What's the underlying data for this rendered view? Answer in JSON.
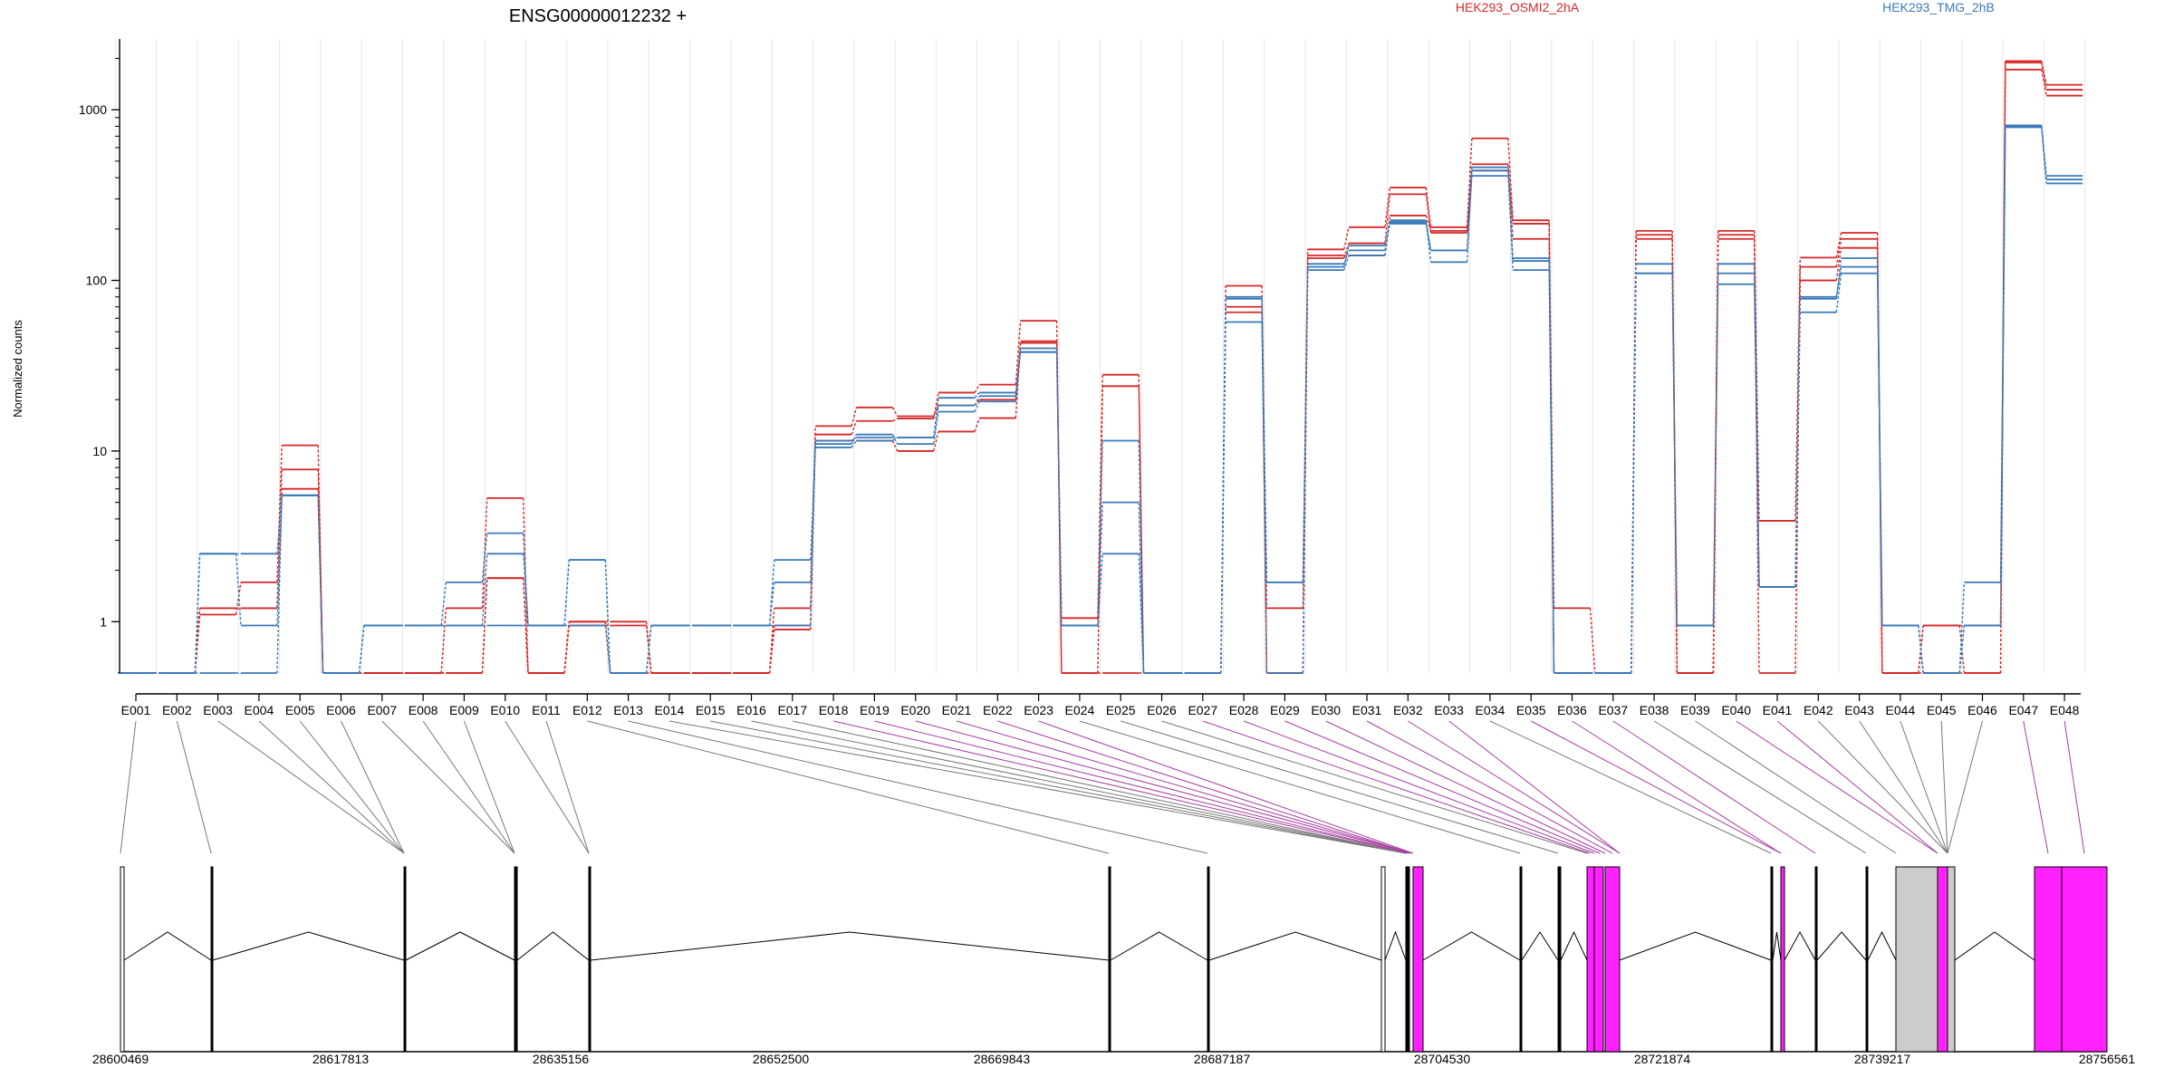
{
  "chart_data": {
    "type": "line",
    "title": "ENSG00000012232 +",
    "ylabel": "Normalized counts",
    "yscale": "log",
    "ylim": [
      0.5,
      2600
    ],
    "yticks": [
      1,
      10,
      100,
      1000
    ],
    "ytick_labels": [
      "1",
      "10",
      "100",
      "1000"
    ],
    "categories": [
      "E001",
      "E002",
      "E003",
      "E004",
      "E005",
      "E006",
      "E007",
      "E008",
      "E009",
      "E010",
      "E011",
      "E012",
      "E013",
      "E014",
      "E015",
      "E016",
      "E017",
      "E018",
      "E019",
      "E020",
      "E021",
      "E022",
      "E023",
      "E024",
      "E025",
      "E026",
      "E027",
      "E028",
      "E029",
      "E030",
      "E031",
      "E032",
      "E033",
      "E034",
      "E035",
      "E036",
      "E037",
      "E038",
      "E039",
      "E040",
      "E041",
      "E042",
      "E043",
      "E044",
      "E045",
      "E046",
      "E047",
      "E048"
    ],
    "legend": [
      {
        "label": "HEK293_OSMI2_2hA",
        "color": "#d62728"
      },
      {
        "label": "HEK293_TMG_2hB",
        "color": "#3a7ab8"
      }
    ],
    "series": [
      {
        "group": "HEK293_OSMI2_2hA",
        "color": "#d62728",
        "values": [
          0.5,
          0.5,
          1.1,
          1.7,
          10.8,
          0.5,
          0.5,
          0.5,
          1.2,
          5.3,
          0.5,
          1.0,
          1.0,
          0.5,
          0.5,
          0.5,
          0.9,
          11.5,
          11.5,
          10.0,
          13.0,
          15.6,
          43,
          1.05,
          28,
          0.5,
          0.5,
          93,
          1.2,
          152,
          205,
          350,
          205,
          680,
          225,
          1.2,
          0.5,
          195,
          0.5,
          195,
          3.9,
          136,
          190,
          0.5,
          0.95,
          0.95,
          1930,
          1400
        ]
      },
      {
        "group": "HEK293_OSMI2_2hA",
        "color": "#d62728",
        "values": [
          0.5,
          0.5,
          1.2,
          1.2,
          7.8,
          0.5,
          0.5,
          0.5,
          0.5,
          1.8,
          0.5,
          1.0,
          0.5,
          0.5,
          0.5,
          0.5,
          1.2,
          12.5,
          15.0,
          15.5,
          22.0,
          24.5,
          58,
          0.5,
          24,
          0.5,
          0.5,
          70,
          0.5,
          135,
          165,
          320,
          190,
          480,
          215,
          0.5,
          0.5,
          175,
          0.5,
          175,
          1.6,
          120,
          175,
          0.5,
          0.95,
          0.5,
          1720,
          1210
        ]
      },
      {
        "group": "HEK293_OSMI2_2hA",
        "color": "#d62728",
        "values": [
          0.5,
          0.5,
          1.2,
          1.2,
          6.0,
          0.5,
          0.5,
          0.5,
          0.5,
          1.8,
          0.5,
          0.95,
          0.95,
          0.5,
          0.5,
          0.5,
          0.95,
          14.0,
          18.0,
          16.0,
          18.5,
          20.0,
          44,
          0.5,
          0.5,
          0.5,
          0.5,
          65,
          0.5,
          140,
          140,
          240,
          195,
          440,
          175,
          0.5,
          0.5,
          185,
          0.5,
          185,
          0.5,
          100,
          155,
          0.5,
          0.5,
          0.5,
          1890,
          1310
        ]
      },
      {
        "group": "HEK293_TMG_2hB",
        "color": "#3a7ab8",
        "values": [
          0.5,
          0.5,
          2.5,
          0.95,
          5.5,
          0.5,
          0.95,
          0.95,
          1.7,
          3.3,
          0.95,
          2.3,
          0.5,
          0.95,
          0.95,
          0.95,
          2.3,
          10.5,
          11.5,
          12.0,
          18.5,
          21.0,
          38,
          0.95,
          11.5,
          0.5,
          0.5,
          78,
          1.7,
          125,
          150,
          215,
          150,
          410,
          135,
          0.5,
          0.5,
          125,
          0.95,
          125,
          1.6,
          78,
          135,
          0.95,
          0.5,
          1.7,
          810,
          410
        ]
      },
      {
        "group": "HEK293_TMG_2hB",
        "color": "#3a7ab8",
        "values": [
          0.5,
          0.5,
          2.5,
          2.5,
          5.5,
          0.5,
          0.95,
          0.95,
          0.95,
          2.5,
          0.95,
          2.3,
          0.5,
          0.95,
          0.95,
          0.95,
          1.7,
          11.0,
          12.5,
          11.0,
          17.0,
          19.5,
          40,
          0.95,
          5.0,
          0.5,
          0.5,
          57,
          1.7,
          115,
          140,
          225,
          128,
          440,
          115,
          0.5,
          0.5,
          110,
          0.95,
          110,
          1.6,
          65,
          110,
          0.95,
          0.5,
          0.95,
          790,
          370
        ]
      },
      {
        "group": "HEK293_TMG_2hB",
        "color": "#3a7ab8",
        "values": [
          0.5,
          0.5,
          0.5,
          0.5,
          5.5,
          0.5,
          0.95,
          0.95,
          0.95,
          0.95,
          0.95,
          0.95,
          0.5,
          0.95,
          0.95,
          0.95,
          0.95,
          11.5,
          12.0,
          12.0,
          20.5,
          22.0,
          38,
          0.95,
          2.5,
          0.5,
          0.5,
          80,
          0.5,
          120,
          160,
          220,
          150,
          460,
          130,
          0.5,
          0.5,
          110,
          0.95,
          95,
          1.6,
          80,
          120,
          0.95,
          0.5,
          0.95,
          800,
          390
        ]
      }
    ],
    "gene_model": {
      "coordinate_labels": [
        "28600469",
        "28617813",
        "28635156",
        "28652500",
        "28669843",
        "28687187",
        "28704530",
        "28721874",
        "28739217",
        "28756561"
      ]
    }
  }
}
